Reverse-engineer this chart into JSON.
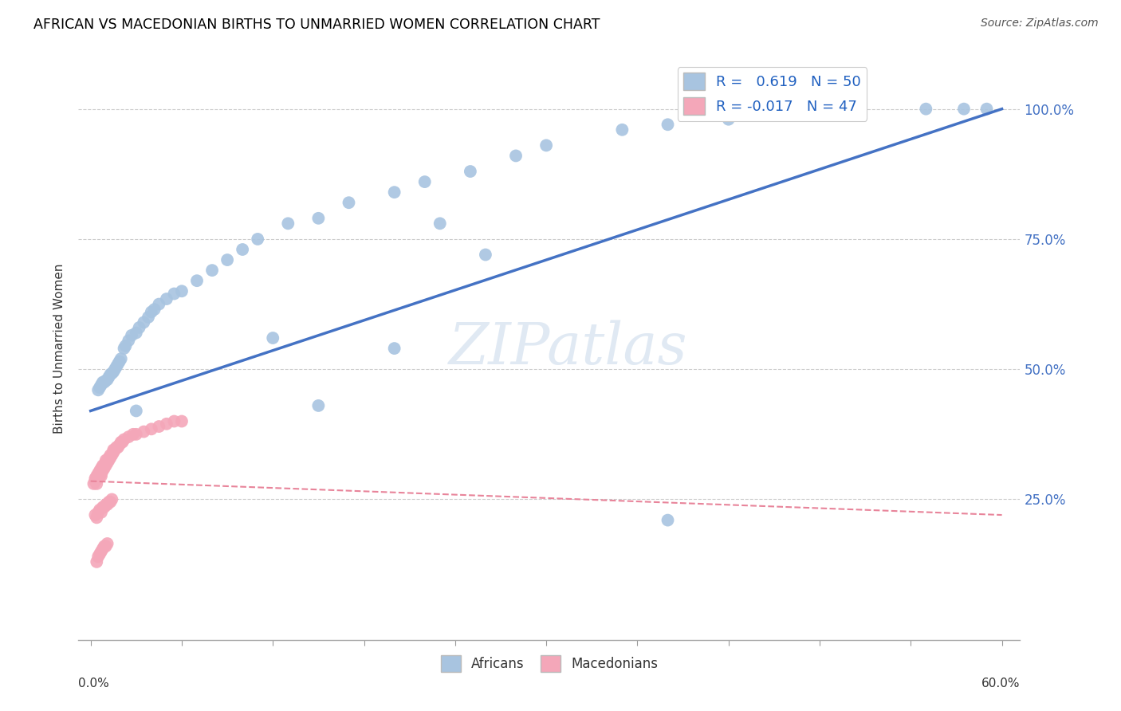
{
  "title": "AFRICAN VS MACEDONIAN BIRTHS TO UNMARRIED WOMEN CORRELATION CHART",
  "source": "Source: ZipAtlas.com",
  "ylabel": "Births to Unmarried Women",
  "xlim": [
    0.0,
    0.6
  ],
  "ylim": [
    -0.02,
    1.1
  ],
  "ytick_labels": [
    "25.0%",
    "50.0%",
    "75.0%",
    "100.0%"
  ],
  "ytick_values": [
    0.25,
    0.5,
    0.75,
    1.0
  ],
  "african_R": 0.619,
  "african_N": 50,
  "macedonian_R": -0.017,
  "macedonian_N": 47,
  "african_color": "#a8c4e0",
  "african_line_color": "#4472c4",
  "macedonian_color": "#f4a7b9",
  "macedonian_line_color": "#e8849a",
  "african_x": [
    0.005,
    0.006,
    0.007,
    0.008,
    0.009,
    0.01,
    0.011,
    0.012,
    0.013,
    0.014,
    0.015,
    0.016,
    0.017,
    0.018,
    0.019,
    0.02,
    0.022,
    0.023,
    0.025,
    0.027,
    0.03,
    0.032,
    0.035,
    0.038,
    0.04,
    0.042,
    0.045,
    0.05,
    0.055,
    0.06,
    0.07,
    0.08,
    0.09,
    0.1,
    0.11,
    0.13,
    0.15,
    0.17,
    0.2,
    0.22,
    0.25,
    0.28,
    0.3,
    0.35,
    0.38,
    0.42,
    0.46,
    0.55,
    0.575,
    0.59
  ],
  "african_y": [
    0.46,
    0.465,
    0.47,
    0.475,
    0.475,
    0.478,
    0.48,
    0.485,
    0.49,
    0.492,
    0.495,
    0.5,
    0.505,
    0.51,
    0.515,
    0.52,
    0.54,
    0.545,
    0.555,
    0.565,
    0.57,
    0.58,
    0.59,
    0.6,
    0.61,
    0.615,
    0.625,
    0.635,
    0.645,
    0.65,
    0.67,
    0.69,
    0.71,
    0.73,
    0.75,
    0.78,
    0.79,
    0.82,
    0.84,
    0.86,
    0.88,
    0.91,
    0.93,
    0.96,
    0.97,
    0.98,
    1.0,
    1.0,
    1.0,
    1.0
  ],
  "african_outliers_x": [
    0.03,
    0.12,
    0.15,
    0.2,
    0.23,
    0.26,
    0.38
  ],
  "african_outliers_y": [
    0.42,
    0.56,
    0.43,
    0.54,
    0.78,
    0.72,
    0.21
  ],
  "macedonian_x": [
    0.002,
    0.003,
    0.003,
    0.004,
    0.004,
    0.005,
    0.005,
    0.005,
    0.006,
    0.006,
    0.006,
    0.007,
    0.007,
    0.007,
    0.008,
    0.008,
    0.008,
    0.009,
    0.009,
    0.01,
    0.01,
    0.01,
    0.011,
    0.011,
    0.012,
    0.012,
    0.013,
    0.013,
    0.014,
    0.015,
    0.015,
    0.016,
    0.017,
    0.018,
    0.019,
    0.02,
    0.021,
    0.022,
    0.025,
    0.028,
    0.03,
    0.035,
    0.04,
    0.045,
    0.05,
    0.055,
    0.06
  ],
  "macedonian_y": [
    0.28,
    0.285,
    0.29,
    0.28,
    0.295,
    0.29,
    0.295,
    0.3,
    0.295,
    0.3,
    0.305,
    0.295,
    0.3,
    0.31,
    0.305,
    0.31,
    0.315,
    0.31,
    0.315,
    0.315,
    0.32,
    0.325,
    0.32,
    0.325,
    0.325,
    0.33,
    0.33,
    0.335,
    0.335,
    0.34,
    0.345,
    0.345,
    0.35,
    0.35,
    0.355,
    0.36,
    0.36,
    0.365,
    0.37,
    0.375,
    0.375,
    0.38,
    0.385,
    0.39,
    0.395,
    0.4,
    0.4
  ],
  "macedonian_outliers_x": [
    0.003,
    0.004,
    0.005,
    0.006,
    0.007,
    0.008,
    0.009,
    0.01,
    0.011,
    0.012,
    0.013,
    0.014,
    0.004,
    0.005,
    0.006,
    0.007,
    0.008,
    0.009,
    0.01,
    0.011
  ],
  "macedonian_outliers_y": [
    0.22,
    0.215,
    0.225,
    0.23,
    0.225,
    0.235,
    0.235,
    0.24,
    0.24,
    0.245,
    0.245,
    0.25,
    0.13,
    0.14,
    0.145,
    0.15,
    0.155,
    0.16,
    0.16,
    0.165
  ]
}
